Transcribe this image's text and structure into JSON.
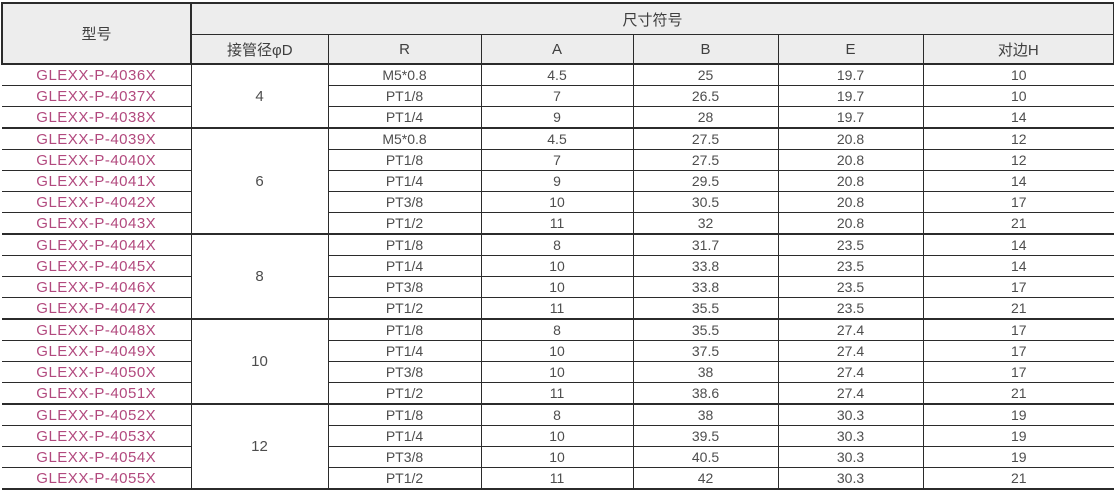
{
  "table": {
    "header": {
      "model_col": "型号",
      "dims_group": "尺寸符号",
      "columns": [
        "接管径φD",
        "R",
        "A",
        "B",
        "E",
        "对边H"
      ]
    },
    "colors": {
      "model_text": "#b2497e",
      "border": "#2b2b2b",
      "header_bg": "#ededed",
      "body_text": "#4d4d4d"
    },
    "groups": [
      {
        "d": "4",
        "rows": [
          {
            "model": "GLEXX-P-4036X",
            "r": "M5*0.8",
            "a": "4.5",
            "b": "25",
            "e": "19.7",
            "h": "10"
          },
          {
            "model": "GLEXX-P-4037X",
            "r": "PT1/8",
            "a": "7",
            "b": "26.5",
            "e": "19.7",
            "h": "10"
          },
          {
            "model": "GLEXX-P-4038X",
            "r": "PT1/4",
            "a": "9",
            "b": "28",
            "e": "19.7",
            "h": "14"
          }
        ]
      },
      {
        "d": "6",
        "rows": [
          {
            "model": "GLEXX-P-4039X",
            "r": "M5*0.8",
            "a": "4.5",
            "b": "27.5",
            "e": "20.8",
            "h": "12"
          },
          {
            "model": "GLEXX-P-4040X",
            "r": "PT1/8",
            "a": "7",
            "b": "27.5",
            "e": "20.8",
            "h": "12"
          },
          {
            "model": "GLEXX-P-4041X",
            "r": "PT1/4",
            "a": "9",
            "b": "29.5",
            "e": "20.8",
            "h": "14"
          },
          {
            "model": "GLEXX-P-4042X",
            "r": "PT3/8",
            "a": "10",
            "b": "30.5",
            "e": "20.8",
            "h": "17"
          },
          {
            "model": "GLEXX-P-4043X",
            "r": "PT1/2",
            "a": "11",
            "b": "32",
            "e": "20.8",
            "h": "21"
          }
        ]
      },
      {
        "d": "8",
        "rows": [
          {
            "model": "GLEXX-P-4044X",
            "r": "PT1/8",
            "a": "8",
            "b": "31.7",
            "e": "23.5",
            "h": "14"
          },
          {
            "model": "GLEXX-P-4045X",
            "r": "PT1/4",
            "a": "10",
            "b": "33.8",
            "e": "23.5",
            "h": "14"
          },
          {
            "model": "GLEXX-P-4046X",
            "r": "PT3/8",
            "a": "10",
            "b": "33.8",
            "e": "23.5",
            "h": "17"
          },
          {
            "model": "GLEXX-P-4047X",
            "r": "PT1/2",
            "a": "11",
            "b": "35.5",
            "e": "23.5",
            "h": "21"
          }
        ]
      },
      {
        "d": "10",
        "rows": [
          {
            "model": "GLEXX-P-4048X",
            "r": "PT1/8",
            "a": "8",
            "b": "35.5",
            "e": "27.4",
            "h": "17"
          },
          {
            "model": "GLEXX-P-4049X",
            "r": "PT1/4",
            "a": "10",
            "b": "37.5",
            "e": "27.4",
            "h": "17"
          },
          {
            "model": "GLEXX-P-4050X",
            "r": "PT3/8",
            "a": "10",
            "b": "38",
            "e": "27.4",
            "h": "17"
          },
          {
            "model": "GLEXX-P-4051X",
            "r": "PT1/2",
            "a": "11",
            "b": "38.6",
            "e": "27.4",
            "h": "21"
          }
        ]
      },
      {
        "d": "12",
        "rows": [
          {
            "model": "GLEXX-P-4052X",
            "r": "PT1/8",
            "a": "8",
            "b": "38",
            "e": "30.3",
            "h": "19"
          },
          {
            "model": "GLEXX-P-4053X",
            "r": "PT1/4",
            "a": "10",
            "b": "39.5",
            "e": "30.3",
            "h": "19"
          },
          {
            "model": "GLEXX-P-4054X",
            "r": "PT3/8",
            "a": "10",
            "b": "40.5",
            "e": "30.3",
            "h": "19"
          },
          {
            "model": "GLEXX-P-4055X",
            "r": "PT1/2",
            "a": "11",
            "b": "42",
            "e": "30.3",
            "h": "21"
          }
        ]
      }
    ]
  }
}
